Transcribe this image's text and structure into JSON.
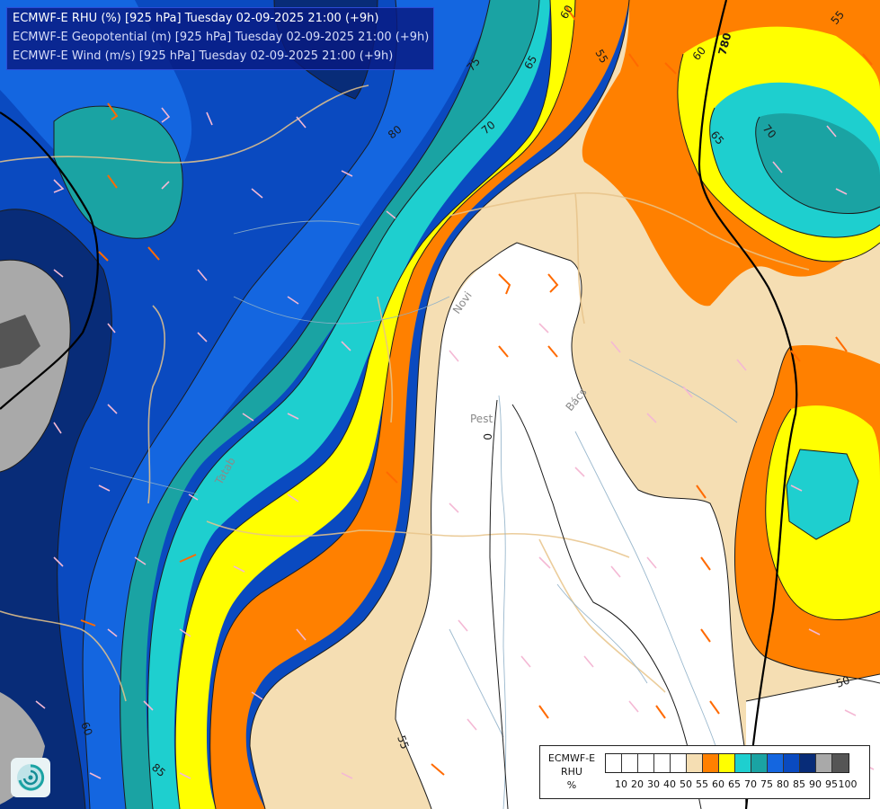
{
  "header": {
    "line1": "ECMWF-E RHU (%) [925 hPa] Tuesday 02-09-2025 21:00 (+9h)",
    "line2": "ECMWF-E Geopotential (m) [925 hPa] Tuesday 02-09-2025 21:00 (+9h)",
    "line3": "ECMWF-E Wind (m/s) [925 hPa] Tuesday 02-09-2025 21:00 (+9h)"
  },
  "legend": {
    "model": "ECMWF-E",
    "variable": "RHU",
    "unit": "%",
    "levels": [
      "10",
      "20",
      "30",
      "40",
      "50",
      "55",
      "60",
      "65",
      "70",
      "75",
      "80",
      "85",
      "90",
      "95",
      "100"
    ],
    "colors": [
      "#ffffff",
      "#ffffff",
      "#ffffff",
      "#ffffff",
      "#ffffff",
      "#f5deb3",
      "#ff8000",
      "#ffff00",
      "#1ecfcf",
      "#1aa3a3",
      "#1466e0",
      "#0a4ac0",
      "#082c78",
      "#a9a9a9",
      "#555555"
    ]
  },
  "contour_labels": {
    "rhu": [
      "55",
      "60",
      "65",
      "70",
      "75",
      "80",
      "85",
      "60",
      "55",
      "60",
      "65",
      "70",
      "50",
      "55"
    ],
    "geopotential": [
      "780",
      "0"
    ]
  },
  "place_labels": [
    "Novi",
    "Pest",
    "Bács",
    "Tatab"
  ],
  "icons": {
    "logo": "ecmwf-logo-icon"
  }
}
